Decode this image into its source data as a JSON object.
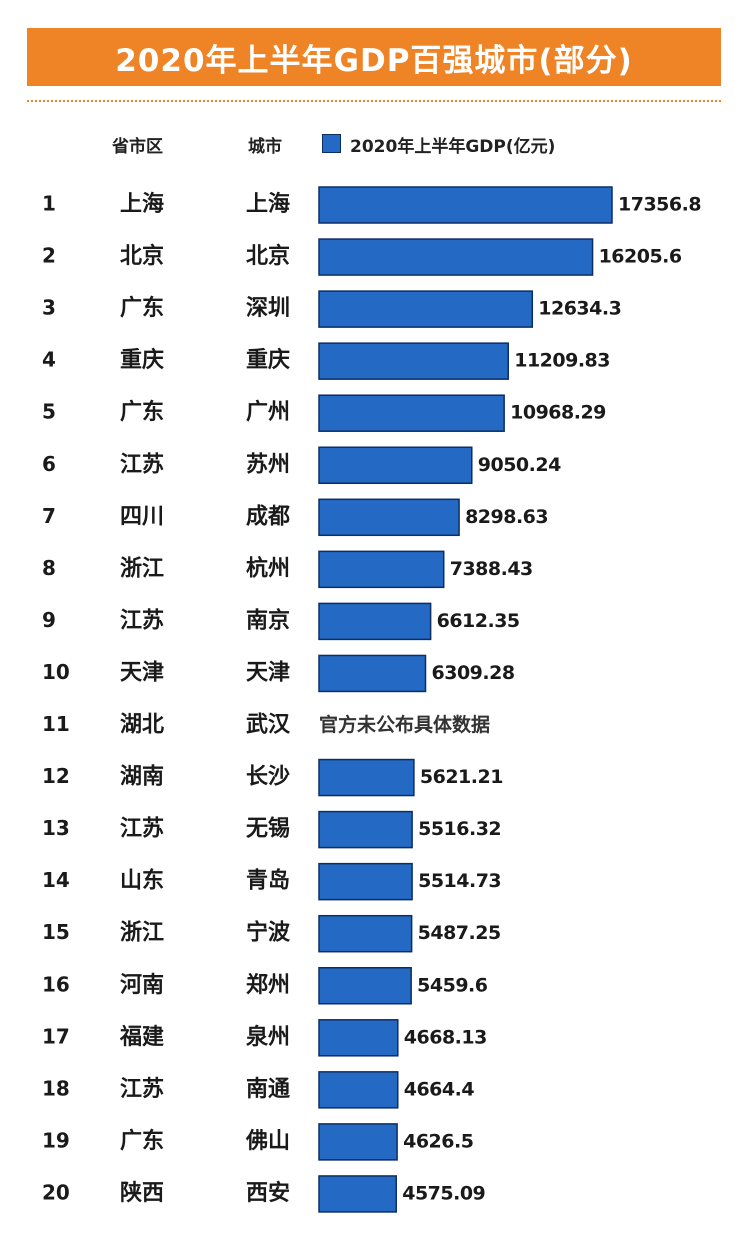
{
  "title": "2020年上半年GDP百强城市(部分)",
  "headers": {
    "province": "省市区",
    "city": "城市"
  },
  "colors": {
    "banner": "#ef8427",
    "bar": "#2469c3",
    "bar_border": "#0d2e63"
  },
  "chart_data": {
    "type": "bar",
    "orientation": "horizontal",
    "legend": "2020年上半年GDP(亿元)",
    "legend_placement": "top",
    "grid": false,
    "rows": [
      {
        "rank": "1",
        "province": "上海",
        "city": "上海",
        "value": 17356.8,
        "label": "17356.8"
      },
      {
        "rank": "2",
        "province": "北京",
        "city": "北京",
        "value": 16205.6,
        "label": "16205.6"
      },
      {
        "rank": "3",
        "province": "广东",
        "city": "深圳",
        "value": 12634.3,
        "label": "12634.3"
      },
      {
        "rank": "4",
        "province": "重庆",
        "city": "重庆",
        "value": 11209.83,
        "label": "11209.83"
      },
      {
        "rank": "5",
        "province": "广东",
        "city": "广州",
        "value": 10968.29,
        "label": "10968.29"
      },
      {
        "rank": "6",
        "province": "江苏",
        "city": "苏州",
        "value": 9050.24,
        "label": "9050.24"
      },
      {
        "rank": "7",
        "province": "四川",
        "city": "成都",
        "value": 8298.63,
        "label": "8298.63"
      },
      {
        "rank": "8",
        "province": "浙江",
        "city": "杭州",
        "value": 7388.43,
        "label": "7388.43"
      },
      {
        "rank": "9",
        "province": "江苏",
        "city": "南京",
        "value": 6612.35,
        "label": "6612.35"
      },
      {
        "rank": "10",
        "province": "天津",
        "city": "天津",
        "value": 6309.28,
        "label": "6309.28"
      },
      {
        "rank": "11",
        "province": "湖北",
        "city": "武汉",
        "value": null,
        "label": "官方未公布具体数据"
      },
      {
        "rank": "12",
        "province": "湖南",
        "city": "长沙",
        "value": 5621.21,
        "label": "5621.21"
      },
      {
        "rank": "13",
        "province": "江苏",
        "city": "无锡",
        "value": 5516.32,
        "label": "5516.32"
      },
      {
        "rank": "14",
        "province": "山东",
        "city": "青岛",
        "value": 5514.73,
        "label": "5514.73"
      },
      {
        "rank": "15",
        "province": "浙江",
        "city": "宁波",
        "value": 5487.25,
        "label": "5487.25"
      },
      {
        "rank": "16",
        "province": "河南",
        "city": "郑州",
        "value": 5459.6,
        "label": "5459.6"
      },
      {
        "rank": "17",
        "province": "福建",
        "city": "泉州",
        "value": 4668.13,
        "label": "4668.13"
      },
      {
        "rank": "18",
        "province": "江苏",
        "city": "南通",
        "value": 4664.4,
        "label": "4664.4"
      },
      {
        "rank": "19",
        "province": "广东",
        "city": "佛山",
        "value": 4626.5,
        "label": "4626.5"
      },
      {
        "rank": "20",
        "province": "陕西",
        "city": "西安",
        "value": 4575.09,
        "label": "4575.09"
      }
    ]
  }
}
